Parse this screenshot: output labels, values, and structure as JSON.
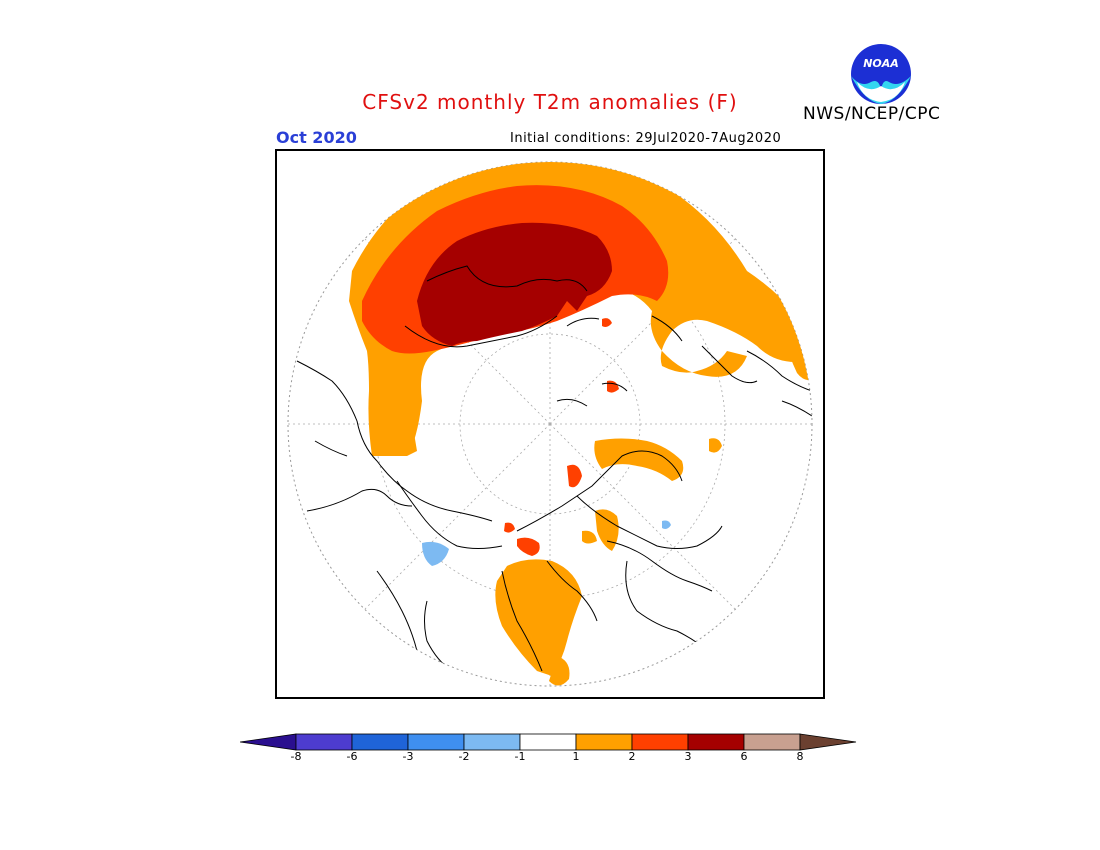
{
  "header": {
    "title": "CFSv2 monthly T2m anomalies (F)",
    "month": "Oct 2020",
    "initial_conditions": "Initial conditions: 29Jul2020-7Aug2020",
    "agency": "NWS/NCEP/CPC",
    "logo_text": "NOAA"
  },
  "colorbar": {
    "levels": [
      "-8",
      "-6",
      "-3",
      "-2",
      "-1",
      "1",
      "2",
      "3",
      "6",
      "8"
    ],
    "colors": [
      "#2a0f8f",
      "#4d3ccf",
      "#1f64d8",
      "#3f8ff0",
      "#7dbaf2",
      "#ffffff",
      "#ffa000",
      "#ff4000",
      "#a50000",
      "#c8a090",
      "#6b4030"
    ]
  },
  "map": {
    "projection": "north polar stereographic",
    "colors": {
      "warm1": "#ffa000",
      "warm2": "#ff4000",
      "warm3": "#a50000",
      "cool1": "#7dbaf2"
    }
  }
}
